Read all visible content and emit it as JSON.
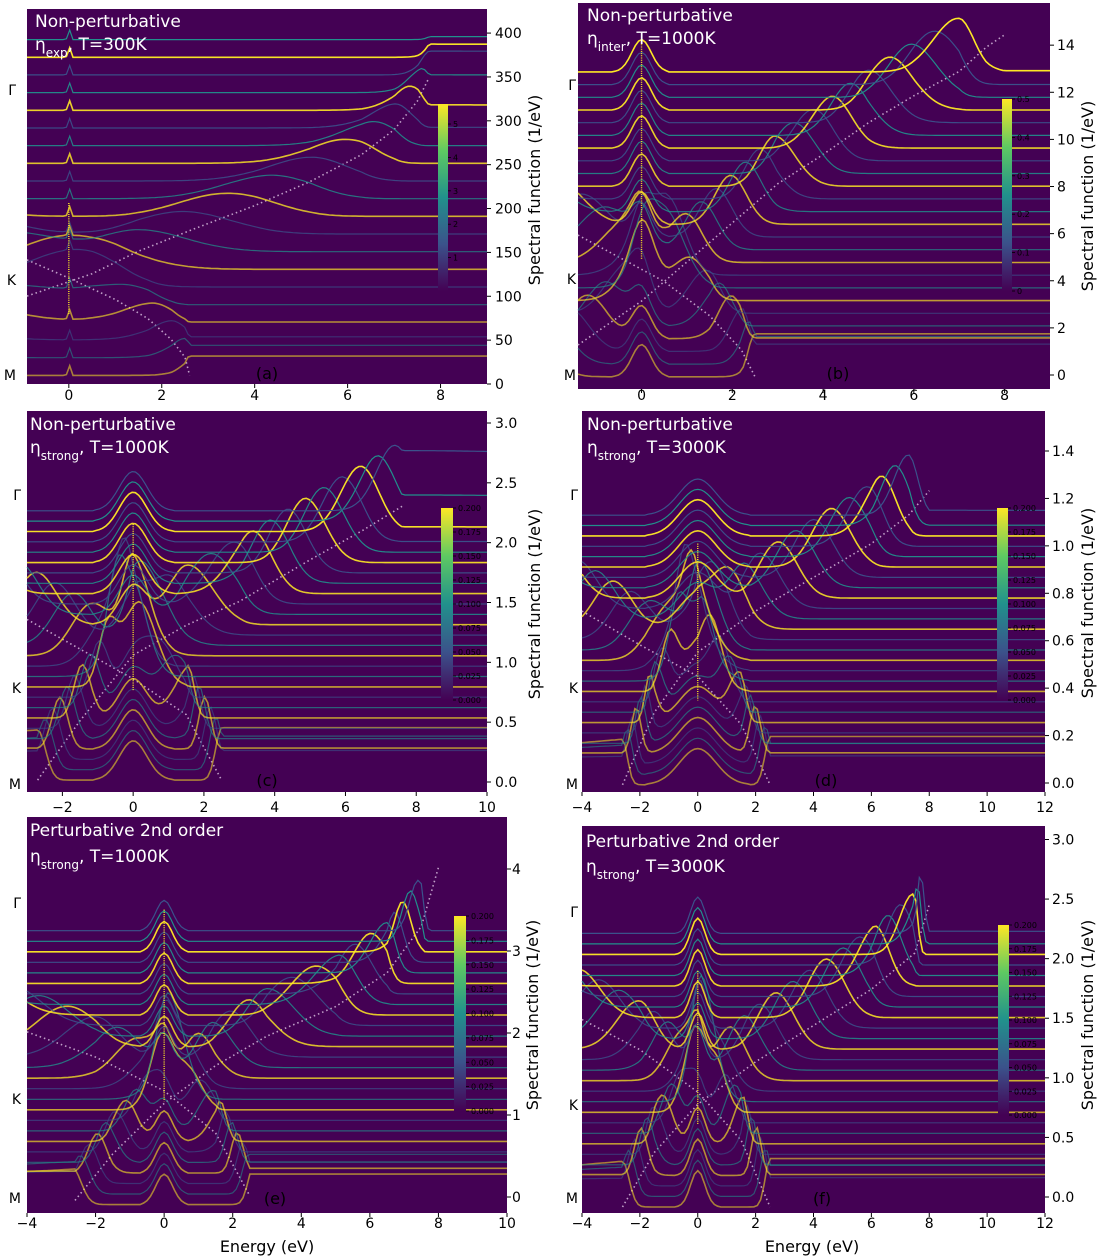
{
  "figure": {
    "x_axis_label": "Energy (eV)",
    "y_axis_label": "Spectral function (1/eV)",
    "k_labels": [
      "Γ",
      "K",
      "M"
    ]
  },
  "colors": {
    "background": "#440154",
    "high": "#fde725",
    "mid": "#21918c",
    "low": "#3b528b",
    "dispersion": "#c0a0c8"
  },
  "chart_data": [
    {
      "id": "a",
      "type": "line",
      "panel_label": "(a)",
      "title": "Non-perturbative",
      "subtitle": {
        "sym": "η",
        "sub": "exp",
        "rest": ", T=300K"
      },
      "xlim": [
        -0.9,
        9.0
      ],
      "xticks": [
        0,
        2,
        4,
        6,
        8
      ],
      "ylim": [
        -10,
        425
      ],
      "yticks": [
        0,
        50,
        100,
        150,
        200,
        250,
        300,
        350,
        400
      ],
      "colorbar": {
        "ticks": [
          1,
          2,
          3,
          4,
          5
        ],
        "range": [
          0,
          5.6
        ]
      },
      "num_curves": 20,
      "spacing": 20.5,
      "amplitude": 28,
      "width": 0.03,
      "center_peak": 200,
      "upper_band": [
        [
          -0.9,
          92
        ],
        [
          0.5,
          118
        ],
        [
          1.5,
          144
        ],
        [
          2.7,
          170
        ],
        [
          4.0,
          197
        ],
        [
          5.2,
          225
        ],
        [
          6.3,
          256
        ],
        [
          7.0,
          285
        ],
        [
          7.5,
          318
        ],
        [
          7.75,
          345
        ]
      ],
      "lower_band": [
        [
          -0.9,
          134
        ],
        [
          0.0,
          113
        ],
        [
          1.0,
          88
        ],
        [
          1.7,
          66
        ],
        [
          2.2,
          42
        ],
        [
          2.5,
          21
        ],
        [
          2.6,
          0
        ]
      ]
    },
    {
      "id": "b",
      "type": "line",
      "panel_label": "(b)",
      "title": "Non-perturbative",
      "subtitle": {
        "sym": "η",
        "sub": "inter",
        "rest": ", T=1000K"
      },
      "xlim": [
        -1.4,
        9.0
      ],
      "xticks": [
        0,
        2,
        4,
        6,
        8
      ],
      "ylim": [
        -0.5,
        15.3
      ],
      "yticks": [
        0,
        2,
        4,
        6,
        8,
        10,
        12,
        14
      ],
      "colorbar": {
        "ticks": [
          0.0,
          0.1,
          0.2,
          0.3,
          0.4,
          0.5
        ],
        "range": [
          0,
          0.5
        ]
      },
      "num_curves": 25,
      "spacing": 0.52,
      "amplitude": 2.2,
      "width": 0.3,
      "center_peak": 13.7,
      "upper_band": [
        [
          -1.4,
          1.3
        ],
        [
          0.0,
          3.1
        ],
        [
          1.0,
          4.7
        ],
        [
          2.0,
          6.3
        ],
        [
          3.0,
          7.9
        ],
        [
          4.0,
          9.1
        ],
        [
          5.0,
          10.4
        ],
        [
          6.0,
          11.5
        ],
        [
          7.0,
          12.5
        ],
        [
          7.6,
          13.5
        ],
        [
          8.0,
          14.0
        ]
      ],
      "lower_band": [
        [
          -1.4,
          5.8
        ],
        [
          -0.5,
          4.9
        ],
        [
          0.5,
          3.9
        ],
        [
          1.5,
          2.5
        ],
        [
          2.2,
          1.1
        ],
        [
          2.5,
          0.0
        ]
      ]
    },
    {
      "id": "c",
      "type": "line",
      "panel_label": "(c)",
      "title": "Non-perturbative",
      "subtitle": {
        "sym": "η",
        "sub": "strong",
        "rest": ", T=1000K"
      },
      "xlim": [
        -3.0,
        10.0
      ],
      "xticks": [
        -2,
        0,
        2,
        4,
        6,
        8,
        10
      ],
      "ylim": [
        -0.1,
        3.1
      ],
      "yticks": [
        0.0,
        0.5,
        1.0,
        1.5,
        2.0,
        2.5,
        3.0
      ],
      "yfmt": 1,
      "colorbar": {
        "ticks": [
          0.0,
          0.025,
          0.05,
          0.075,
          0.1,
          0.125,
          0.15,
          0.175,
          0.2
        ],
        "range": [
          0,
          0.2
        ],
        "fmt": 3
      },
      "num_curves": 27,
      "spacing": 0.087,
      "amplitude": 0.55,
      "width": 0.55,
      "center_peak": 2.15,
      "upper_band": [
        [
          -2.7,
          0.0
        ],
        [
          -1.5,
          0.5
        ],
        [
          0.0,
          1.05
        ],
        [
          1.5,
          1.3
        ],
        [
          3.0,
          1.5
        ],
        [
          5.0,
          1.85
        ],
        [
          6.5,
          2.1
        ],
        [
          7.6,
          2.3
        ]
      ],
      "lower_band": [
        [
          -3.0,
          1.35
        ],
        [
          -1.5,
          1.1
        ],
        [
          0.0,
          0.85
        ],
        [
          1.5,
          0.55
        ],
        [
          2.5,
          0.0
        ]
      ]
    },
    {
      "id": "d",
      "type": "line",
      "panel_label": "(d)",
      "title": "Non-perturbative",
      "subtitle": {
        "sym": "η",
        "sub": "strong",
        "rest": ", T=3000K"
      },
      "xlim": [
        -4.0,
        12.0
      ],
      "xticks": [
        -4,
        -2,
        0,
        2,
        4,
        6,
        8,
        10,
        12
      ],
      "ylim": [
        -0.03,
        1.55
      ],
      "yticks": [
        0.0,
        0.2,
        0.4,
        0.6,
        0.8,
        1.0,
        1.2,
        1.4
      ],
      "yfmt": 1,
      "colorbar": {
        "ticks": [
          0.0,
          0.025,
          0.05,
          0.075,
          0.1,
          0.125,
          0.15,
          0.175,
          0.2
        ],
        "range": [
          0,
          0.2
        ],
        "fmt": 3
      },
      "num_curves": 27,
      "spacing": 0.043,
      "amplitude": 0.25,
      "width": 0.9,
      "center_peak": 1.0,
      "upper_band": [
        [
          -2.6,
          0.0
        ],
        [
          -1.5,
          0.3
        ],
        [
          0.0,
          0.55
        ],
        [
          2.0,
          0.72
        ],
        [
          4.0,
          0.86
        ],
        [
          6.0,
          1.0
        ],
        [
          7.3,
          1.12
        ],
        [
          8.0,
          1.22
        ]
      ],
      "lower_band": [
        [
          -4.0,
          0.72
        ],
        [
          -2.0,
          0.58
        ],
        [
          0.0,
          0.45
        ],
        [
          1.5,
          0.25
        ],
        [
          2.5,
          0.0
        ]
      ]
    },
    {
      "id": "e",
      "type": "line",
      "panel_label": "(e)",
      "title": "Perturbative 2nd order",
      "subtitle": {
        "sym": "η",
        "sub": "strong",
        "rest": ", T=1000K"
      },
      "xlim": [
        -4.0,
        10.0
      ],
      "xticks": [
        -4,
        -2,
        0,
        2,
        4,
        6,
        8,
        10
      ],
      "ylim": [
        -0.1,
        4.6
      ],
      "yticks": [
        0,
        1,
        2,
        3,
        4
      ],
      "colorbar": {
        "ticks": [
          0.0,
          0.025,
          0.05,
          0.075,
          0.1,
          0.125,
          0.15,
          0.175,
          0.2
        ],
        "range": [
          0,
          0.2
        ],
        "fmt": 3
      },
      "num_curves": 27,
      "spacing": 0.125,
      "amplitude": 0.6,
      "width": 0.35,
      "center_peak": 3.5,
      "upper_band": [
        [
          -2.6,
          0.05
        ],
        [
          -1.5,
          0.6
        ],
        [
          0.0,
          1.2
        ],
        [
          1.5,
          1.65
        ],
        [
          3.0,
          2.0
        ],
        [
          5.0,
          2.35
        ],
        [
          6.5,
          2.75
        ],
        [
          7.5,
          3.3
        ],
        [
          8.0,
          4.0
        ]
      ],
      "lower_band": [
        [
          -4.0,
          2.05
        ],
        [
          -2.0,
          1.75
        ],
        [
          0.0,
          1.35
        ],
        [
          1.5,
          0.85
        ],
        [
          2.5,
          0.1
        ]
      ]
    },
    {
      "id": "f",
      "type": "line",
      "panel_label": "(f)",
      "title": "Perturbative 2nd order",
      "subtitle": {
        "sym": "η",
        "sub": "strong",
        "rest": ", T=3000K"
      },
      "xlim": [
        -4.0,
        12.0
      ],
      "xticks": [
        -4,
        -2,
        0,
        2,
        4,
        6,
        8,
        10,
        12
      ],
      "ylim": [
        -0.05,
        3.15
      ],
      "yticks": [
        0.0,
        0.5,
        1.0,
        1.5,
        2.0,
        2.5,
        3.0
      ],
      "yfmt": 1,
      "colorbar": {
        "ticks": [
          0.0,
          0.025,
          0.05,
          0.075,
          0.1,
          0.125,
          0.15,
          0.175,
          0.2
        ],
        "range": [
          0,
          0.2
        ],
        "fmt": 3
      },
      "num_curves": 27,
      "spacing": 0.087,
      "amplitude": 0.5,
      "width": 0.35,
      "center_peak": 1.95,
      "upper_band": [
        [
          -2.6,
          0.0
        ],
        [
          -1.5,
          0.45
        ],
        [
          0.0,
          0.85
        ],
        [
          2.0,
          1.2
        ],
        [
          4.0,
          1.5
        ],
        [
          6.0,
          1.8
        ],
        [
          7.5,
          2.1
        ],
        [
          8.0,
          2.5
        ]
      ],
      "lower_band": [
        [
          -4.0,
          1.55
        ],
        [
          -2.0,
          1.3
        ],
        [
          0.0,
          0.95
        ],
        [
          1.5,
          0.55
        ],
        [
          2.5,
          0.0
        ]
      ]
    }
  ]
}
